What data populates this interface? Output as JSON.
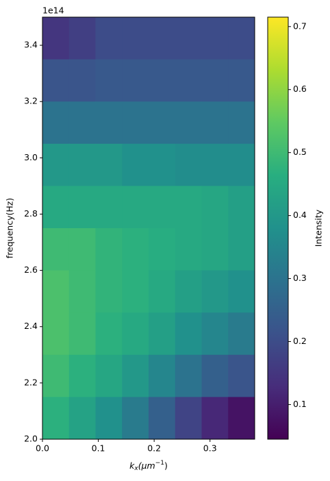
{
  "chart_data": {
    "type": "heatmap",
    "xlabel": [
      "k",
      "x",
      "(μm",
      "−1",
      ")"
    ],
    "ylabel": "frequency(Hz)",
    "y_offset_text": "1e14",
    "colorbar_label": "Intensity",
    "xlim": [
      0,
      0.38
    ],
    "ylim": [
      200000000000000.0,
      350000000000000.0
    ],
    "xticks": [
      {
        "value": 0,
        "label": "0.0"
      },
      0.1,
      0.2,
      0.3
    ],
    "yticks": [
      {
        "value": 200000000000000.0,
        "label": "2.0"
      },
      {
        "value": 220000000000000.0,
        "label": "2.2"
      },
      {
        "value": 240000000000000.0,
        "label": "2.4"
      },
      {
        "value": 260000000000000.0,
        "label": "2.6"
      },
      {
        "value": 280000000000000.0,
        "label": "2.8"
      },
      {
        "value": 300000000000000.0,
        "label": "3.0"
      },
      {
        "value": 320000000000000.0,
        "label": "3.2"
      },
      {
        "value": 340000000000000.0,
        "label": "3.4"
      }
    ],
    "clim": [
      0.045,
      0.715
    ],
    "cticks": [
      0.1,
      0.2,
      0.3,
      0.4,
      0.5,
      0.6,
      0.7
    ],
    "colormap": "viridis",
    "xbins": [
      0,
      0.0475,
      0.095,
      0.1425,
      0.19,
      0.2375,
      0.285,
      0.3325,
      0.38
    ],
    "ybins": [
      350000000000000.0,
      335000000000000.0,
      320000000000000.0,
      305000000000000.0,
      290000000000000.0,
      275000000000000.0,
      260000000000000.0,
      245000000000000.0,
      230000000000000.0,
      215000000000000.0,
      200000000000000.0
    ],
    "z": [
      [
        0.15,
        0.17,
        0.2,
        0.2,
        0.2,
        0.2,
        0.2,
        0.2
      ],
      [
        0.22,
        0.22,
        0.23,
        0.23,
        0.23,
        0.23,
        0.23,
        0.23
      ],
      [
        0.3,
        0.3,
        0.3,
        0.3,
        0.3,
        0.3,
        0.3,
        0.3
      ],
      [
        0.4,
        0.4,
        0.4,
        0.38,
        0.38,
        0.37,
        0.37,
        0.37
      ],
      [
        0.45,
        0.45,
        0.45,
        0.45,
        0.45,
        0.45,
        0.44,
        0.42
      ],
      [
        0.5,
        0.5,
        0.48,
        0.47,
        0.46,
        0.45,
        0.44,
        0.42
      ],
      [
        0.52,
        0.5,
        0.48,
        0.47,
        0.45,
        0.42,
        0.4,
        0.38
      ],
      [
        0.52,
        0.5,
        0.47,
        0.45,
        0.42,
        0.38,
        0.35,
        0.32
      ],
      [
        0.5,
        0.47,
        0.44,
        0.4,
        0.35,
        0.3,
        0.25,
        0.22
      ],
      [
        0.47,
        0.43,
        0.38,
        0.32,
        0.25,
        0.18,
        0.12,
        0.08
      ]
    ]
  }
}
